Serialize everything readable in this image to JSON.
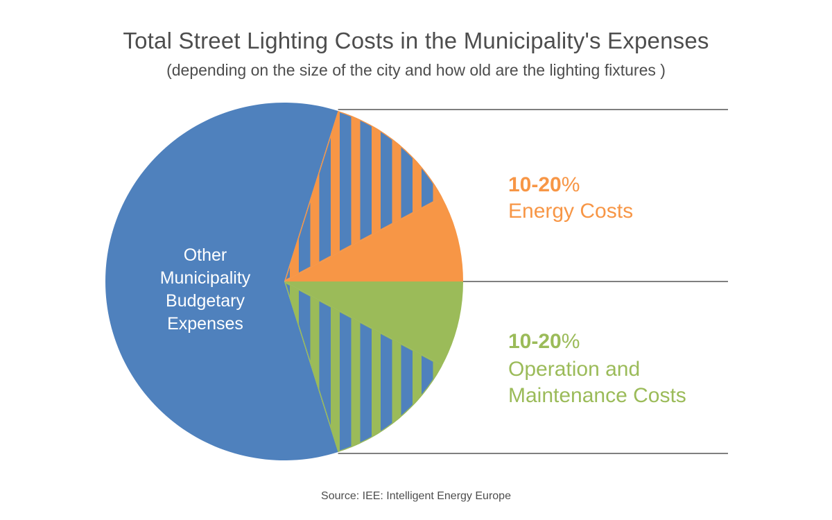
{
  "chart_data": {
    "type": "pie",
    "title": "Total Street Lighting Costs in the Municipality's Expenses",
    "subtitle": "(depending on the size of the city and how old are the lighting fixtures )",
    "source": "Source: IEE: Intelligent Energy Europe",
    "slices": [
      {
        "id": "energy",
        "range_low": 10,
        "range_high": 20,
        "value_label": "10-20",
        "percent_sign": "%",
        "label_lines": [
          "Energy Costs"
        ],
        "color": "#f79646"
      },
      {
        "id": "operation",
        "range_low": 10,
        "range_high": 20,
        "value_label": "10-20",
        "percent_sign": "%",
        "label_lines": [
          "Operation and",
          "Maintenance Costs"
        ],
        "color": "#9bbb59"
      },
      {
        "id": "other",
        "value_label": "",
        "label_lines": [
          "Other",
          "Municipality",
          "Budgetary",
          "Expenses"
        ],
        "color": "#4f81bd"
      }
    ]
  }
}
